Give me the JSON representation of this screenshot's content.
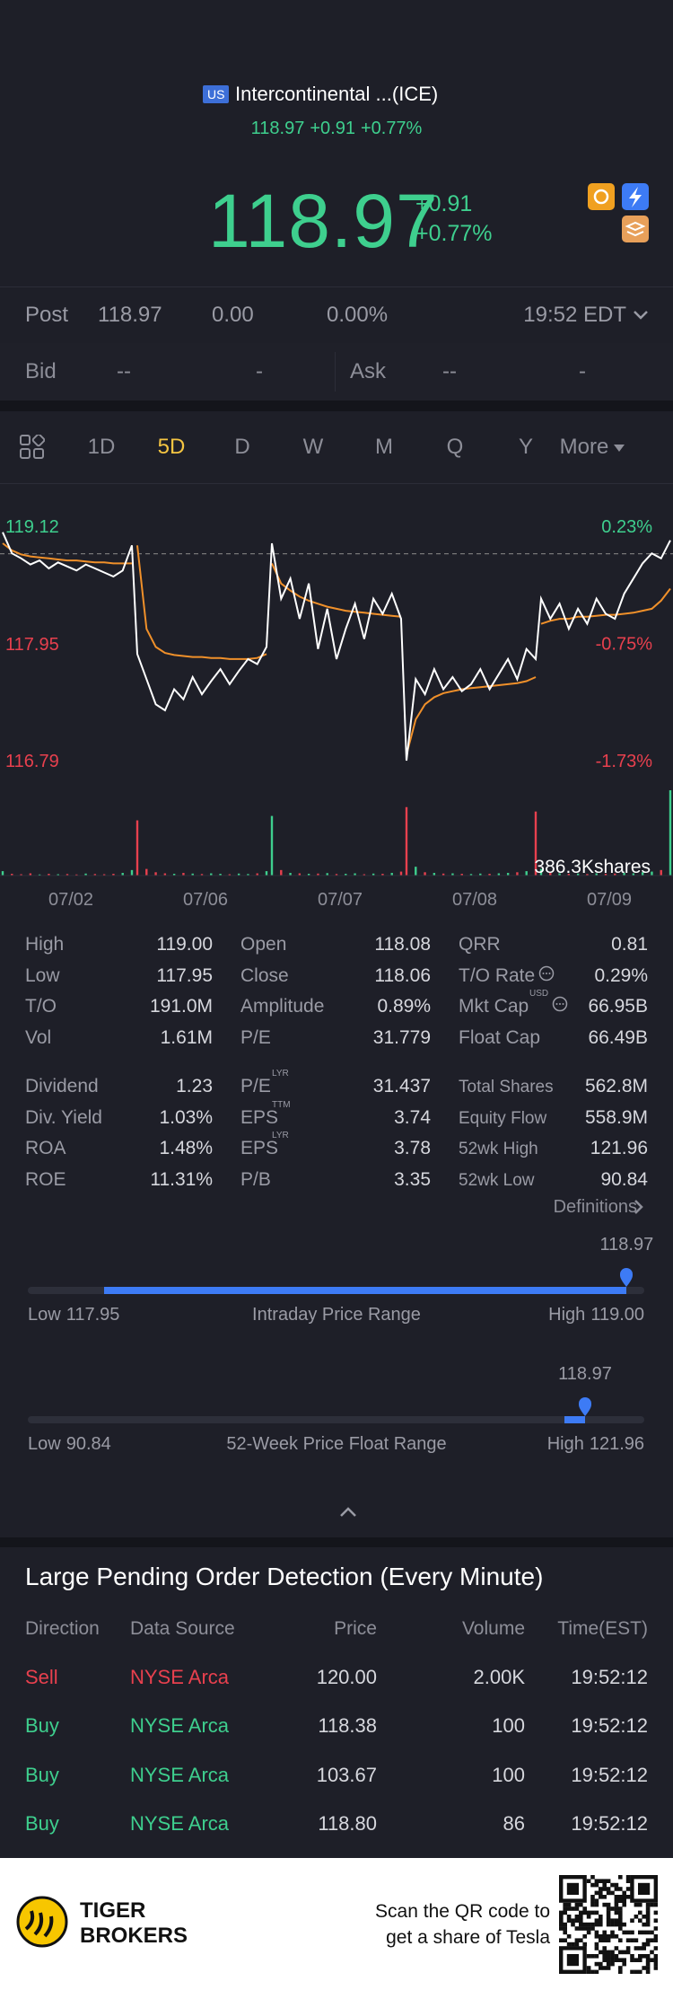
{
  "header": {
    "market_badge": "US",
    "name": "Intercontinental ...(ICE)",
    "summary": {
      "price": "118.97",
      "change": "+0.91",
      "change_pct": "+0.77%"
    }
  },
  "quote": {
    "price": "118.97",
    "change": "+0.91",
    "change_pct": "+0.77%"
  },
  "post": {
    "label": "Post",
    "price": "118.97",
    "change": "0.00",
    "change_pct": "0.00%",
    "time": "19:52 EDT"
  },
  "bid_ask": {
    "bid_label": "Bid",
    "bid_price": "--",
    "bid_size": "-",
    "ask_label": "Ask",
    "ask_price": "--",
    "ask_size": "-"
  },
  "tabs": {
    "items": [
      "1D",
      "5D",
      "D",
      "W",
      "M",
      "Q",
      "Y",
      "More"
    ],
    "active": 1
  },
  "chart_data": {
    "type": "line",
    "x_labels": [
      "07/02",
      "07/06",
      "07/07",
      "07/08",
      "07/09"
    ],
    "ylim": [
      116.79,
      119.12
    ],
    "yticks": [
      116.79,
      117.95,
      119.12
    ],
    "y2lim": [
      -1.73,
      0.23
    ],
    "y2ticks": [
      {
        "value": -1.73,
        "label": "-1.73%"
      },
      {
        "value": -0.75,
        "label": "-0.75%"
      },
      {
        "value": 0.23,
        "label": "0.23%"
      }
    ],
    "up_color": "#3ecf8e",
    "down_color": "#e8404e",
    "series": [
      {
        "color": "#ffffff",
        "values": [
          119.06,
          118.85,
          118.8,
          118.74,
          118.78,
          118.7,
          118.76,
          118.72,
          118.68,
          118.74,
          118.7,
          118.66,
          118.62,
          118.68,
          118.93,
          117.85,
          117.6,
          117.35,
          117.29,
          117.5,
          117.4,
          117.62,
          117.45,
          117.58,
          117.7,
          117.55,
          117.68,
          117.8,
          117.75,
          117.92,
          118.95,
          118.4,
          118.6,
          118.2,
          118.55,
          117.9,
          118.3,
          117.8,
          118.1,
          118.35,
          118.0,
          118.4,
          118.25,
          118.45,
          118.2,
          116.79,
          117.6,
          117.45,
          117.7,
          117.5,
          117.62,
          117.48,
          117.55,
          117.7,
          117.5,
          117.65,
          117.8,
          117.6,
          117.9,
          117.8,
          118.4,
          118.2,
          118.35,
          118.1,
          118.3,
          118.15,
          118.4,
          118.25,
          118.2,
          118.45,
          118.6,
          118.75,
          118.85,
          118.8,
          118.98
        ]
      },
      {
        "color": "#f0902a",
        "values": [
          118.95,
          118.88,
          118.84,
          118.82,
          118.81,
          118.8,
          118.79,
          118.78,
          118.78,
          118.77,
          118.76,
          118.76,
          118.75,
          118.75,
          118.75,
          118.93,
          118.1,
          117.92,
          117.86,
          117.84,
          117.83,
          117.82,
          117.82,
          117.81,
          117.81,
          117.8,
          117.8,
          117.8,
          117.81,
          117.85,
          118.75,
          118.55,
          118.48,
          118.42,
          118.38,
          118.35,
          118.32,
          118.3,
          118.28,
          118.27,
          118.26,
          118.25,
          118.24,
          118.23,
          118.22,
          116.85,
          117.2,
          117.35,
          117.42,
          117.46,
          117.48,
          117.5,
          117.51,
          117.52,
          117.53,
          117.54,
          117.55,
          117.56,
          117.58,
          117.62,
          118.15,
          118.18,
          118.2,
          118.2,
          118.22,
          118.22,
          118.23,
          118.24,
          118.24,
          118.25,
          118.26,
          118.28,
          118.3,
          118.38,
          118.5
        ]
      }
    ],
    "volume": {
      "max": {
        "value": 386.3,
        "label": "386.3Kshares"
      },
      "values": [
        20,
        8,
        6,
        10,
        5,
        8,
        6,
        7,
        5,
        9,
        7,
        6,
        8,
        12,
        25,
        250,
        30,
        15,
        10,
        8,
        12,
        9,
        7,
        10,
        8,
        6,
        9,
        7,
        10,
        20,
        270,
        25,
        12,
        10,
        8,
        9,
        11,
        7,
        8,
        10,
        6,
        9,
        8,
        12,
        18,
        310,
        40,
        15,
        12,
        9,
        10,
        8,
        7,
        9,
        8,
        10,
        12,
        15,
        20,
        290,
        30,
        12,
        10,
        8,
        9,
        7,
        10,
        8,
        9,
        12,
        10,
        15,
        18,
        25,
        386.3
      ]
    }
  },
  "stats": {
    "blocks": [
      [
        [
          {
            "label": "High",
            "value": "119.00"
          },
          {
            "label": "Open",
            "value": "118.08"
          },
          {
            "label": "QRR",
            "value": "0.81"
          }
        ],
        [
          {
            "label": "Low",
            "value": "117.95"
          },
          {
            "label": "Close",
            "value": "118.06"
          },
          {
            "label": "T/O Rate",
            "value": "0.29%",
            "icon": true
          }
        ],
        [
          {
            "label": "T/O",
            "value": "191.0M"
          },
          {
            "label": "Amplitude",
            "value": "0.89%"
          },
          {
            "label": "Mkt Cap",
            "sup": "USD",
            "value": "66.95B",
            "icon": true
          }
        ],
        [
          {
            "label": "Vol",
            "value": "1.61M"
          },
          {
            "label": "P/E",
            "value": "31.779"
          },
          {
            "label": "Float Cap",
            "value": "66.49B"
          }
        ]
      ],
      [
        [
          {
            "label": "Dividend",
            "value": "1.23"
          },
          {
            "label": "P/E",
            "sup": "LYR",
            "value": "31.437"
          },
          {
            "label": "Total Shares",
            "value": "562.8M"
          }
        ],
        [
          {
            "label": "Div. Yield",
            "value": "1.03%"
          },
          {
            "label": "EPS",
            "sup": "TTM",
            "value": "3.74"
          },
          {
            "label": "Equity Flow",
            "value": "558.9M"
          }
        ],
        [
          {
            "label": "ROA",
            "value": "1.48%"
          },
          {
            "label": "EPS",
            "sup": "LYR",
            "value": "3.78"
          },
          {
            "label": "52wk High",
            "value": "121.96"
          }
        ],
        [
          {
            "label": "ROE",
            "value": "11.31%"
          },
          {
            "label": "P/B",
            "value": "3.35"
          },
          {
            "label": "52wk Low",
            "value": "90.84"
          }
        ]
      ]
    ],
    "definitions": "Definitions"
  },
  "intraday": {
    "low_label": "Low",
    "low": 117.95,
    "title": "Intraday Price Range",
    "high_label": "High",
    "high": {
      "value": 119,
      "label": "119.00"
    },
    "current": 118.97
  },
  "week52": {
    "low_label": "Low",
    "low": 90.84,
    "title": "52-Week Price Float Range",
    "high_label": "High",
    "high": 121.96,
    "current": 118.97
  },
  "orders": {
    "title": "Large Pending Order Detection (Every Minute)",
    "columns": [
      "Direction",
      "Data Source",
      "Price",
      "Volume",
      "Time(EST)"
    ],
    "rows": [
      {
        "direction": "Sell",
        "source": "NYSE Arca",
        "price": "120.00",
        "volume": "2.00K",
        "time": "19:52:12",
        "color": "#e8404e"
      },
      {
        "direction": "Buy",
        "source": "NYSE Arca",
        "price": "118.38",
        "volume": "100",
        "time": "19:52:12",
        "color": "#3ecf8e"
      },
      {
        "direction": "Buy",
        "source": "NYSE Arca",
        "price": "103.67",
        "volume": "100",
        "time": "19:52:12",
        "color": "#3ecf8e"
      },
      {
        "direction": "Buy",
        "source": "NYSE Arca",
        "price": "118.80",
        "volume": "86",
        "time": "19:52:12",
        "color": "#3ecf8e"
      }
    ]
  },
  "footer": {
    "brand": [
      "TIGER",
      "BROKERS"
    ],
    "cta": [
      "Scan the QR code to",
      "get a share of Tesla"
    ]
  }
}
